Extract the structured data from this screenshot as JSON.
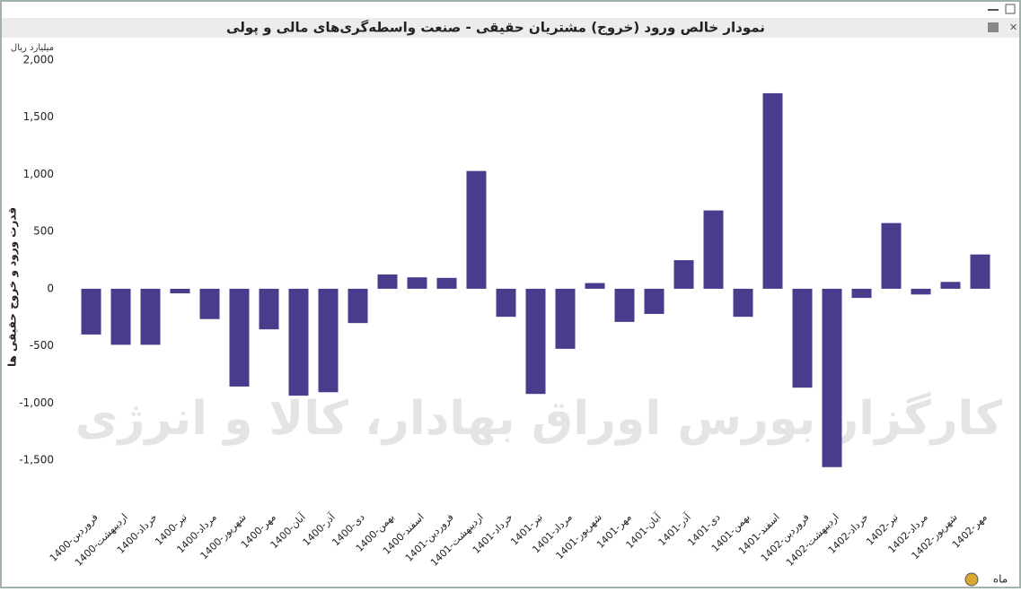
{
  "chart_data": {
    "type": "bar",
    "title": "نمودار خالص ورود (خروج) مشتریان حقیقی - صنعت واسطه‌گری‌های مالی و پولی",
    "unit": "میلیارد ریال",
    "y_label": "قدرت ورود و خروج حقیقی ها",
    "x_label": "ماه",
    "watermark": "کارگزار بورس اوراق بهادار، کالا و انرژی",
    "color": "#4b3b8c",
    "categories": [
      "1400-فروردین",
      "1400-اردیبهشت",
      "1400-خرداد",
      "1400-تیر",
      "1400-مرداد",
      "1400-شهریور",
      "1400-مهر",
      "1400-آبان",
      "1400-آذر",
      "1400-دی",
      "1400-بهمن",
      "1400-اسفند",
      "1401-فروردین",
      "1401-اردیبهشت",
      "1401-خرداد",
      "1401-تیر",
      "1401-مرداد",
      "1401-شهریور",
      "1401-مهر",
      "1401-آبان",
      "1401-آذر",
      "1401-دی",
      "1401-بهمن",
      "1401-اسفند",
      "1402-فروردین",
      "1402-اردیبهشت",
      "1402-خرداد",
      "1402-تیر",
      "1402-مرداد",
      "1402-شهریور",
      "1402-مهر"
    ],
    "values": [
      -400,
      -490,
      -490,
      -40,
      -265,
      -855,
      -355,
      -935,
      -905,
      -300,
      125,
      100,
      95,
      1030,
      -245,
      -920,
      -525,
      50,
      -290,
      -220,
      250,
      685,
      -245,
      1710,
      -865,
      -1560,
      -80,
      575,
      -50,
      60,
      300
    ],
    "ylim": [
      -1750,
      2000
    ],
    "yticks": [
      {
        "value": 2000,
        "label": "2,000"
      },
      {
        "value": 1500,
        "label": "1,500"
      },
      {
        "value": 1000,
        "label": "1,000"
      },
      500,
      0,
      -500,
      {
        "value": -1000,
        "label": "-1,000"
      },
      {
        "value": -1500,
        "label": "-1,500"
      }
    ]
  }
}
